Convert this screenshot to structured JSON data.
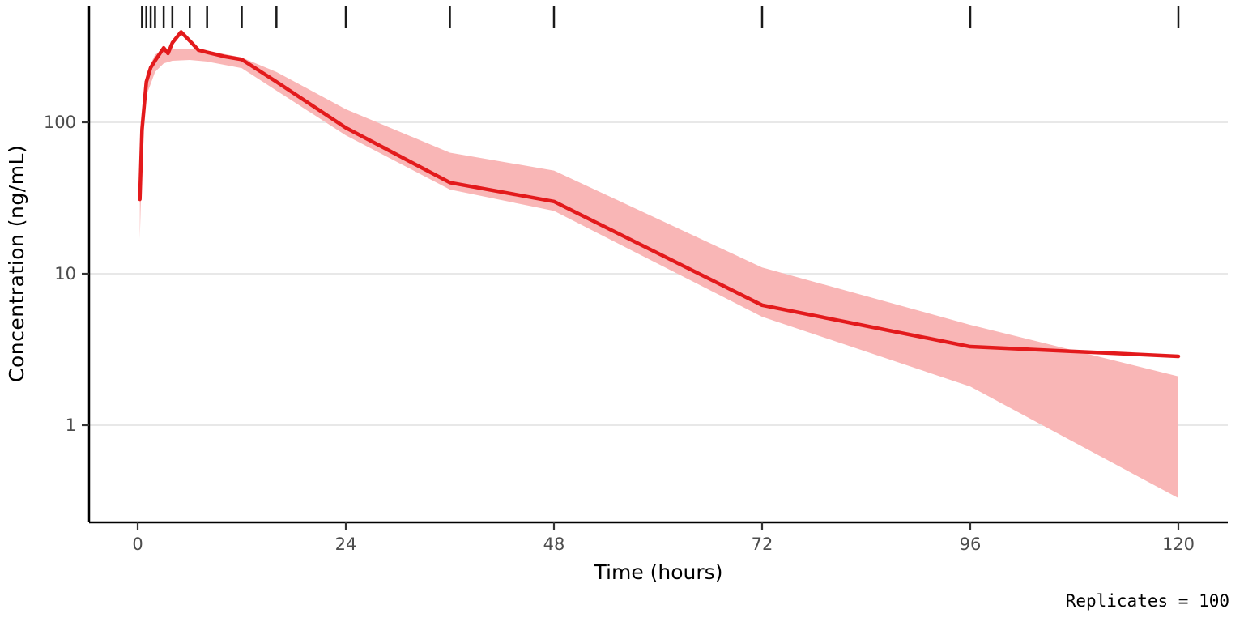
{
  "figure": {
    "caption": "Replicates = 100"
  },
  "chart_data": {
    "type": "line",
    "title": "",
    "xlabel": "Time (hours)",
    "ylabel": "Concentration (ng/mL)",
    "y_scale": "log10",
    "xlim": [
      -5.6,
      125.6
    ],
    "ylim": [
      0.23,
      580
    ],
    "x_ticks": [
      0,
      24,
      48,
      72,
      96,
      120
    ],
    "y_ticks": [
      1,
      10,
      100
    ],
    "grid": "horizontal-major",
    "legend": "none",
    "colors": {
      "line": "#e31a1c",
      "ribbon": "#f9b6b6",
      "grid": "#e8e8e8",
      "axis": "#000000",
      "tick": "#333333",
      "tick_label": "#4d4d4d",
      "rug": "#1a1a1a"
    },
    "rug_times": [
      0.5,
      1,
      1.5,
      2,
      3,
      4,
      6,
      8,
      12,
      16,
      24,
      36,
      48,
      72,
      96,
      120
    ],
    "series": [
      {
        "name": "median-concentration",
        "type": "line",
        "x": [
          0.25,
          0.5,
          1,
          1.5,
          2,
          3,
          3.5,
          4,
          5,
          6,
          7,
          8,
          10,
          12,
          16,
          24,
          36,
          48,
          72,
          96,
          120
        ],
        "y": [
          31,
          90,
          185,
          230,
          255,
          310,
          285,
          335,
          395,
          345,
          300,
          290,
          272,
          260,
          185,
          92,
          40,
          30,
          6.2,
          3.3,
          2.85
        ]
      },
      {
        "name": "prediction-interval",
        "type": "ribbon",
        "x": [
          0.25,
          0.5,
          1,
          2,
          3,
          4,
          6,
          8,
          12,
          16,
          24,
          36,
          48,
          72,
          96,
          120
        ],
        "upper": [
          31,
          100,
          210,
          280,
          300,
          305,
          305,
          298,
          268,
          215,
          122,
          63,
          48,
          11,
          4.6,
          2.1
        ],
        "lower": [
          17,
          60,
          150,
          215,
          245,
          255,
          258,
          252,
          228,
          162,
          82,
          36,
          26,
          5.2,
          1.8,
          0.33
        ]
      }
    ],
    "annotation": "Replicates = 100"
  }
}
